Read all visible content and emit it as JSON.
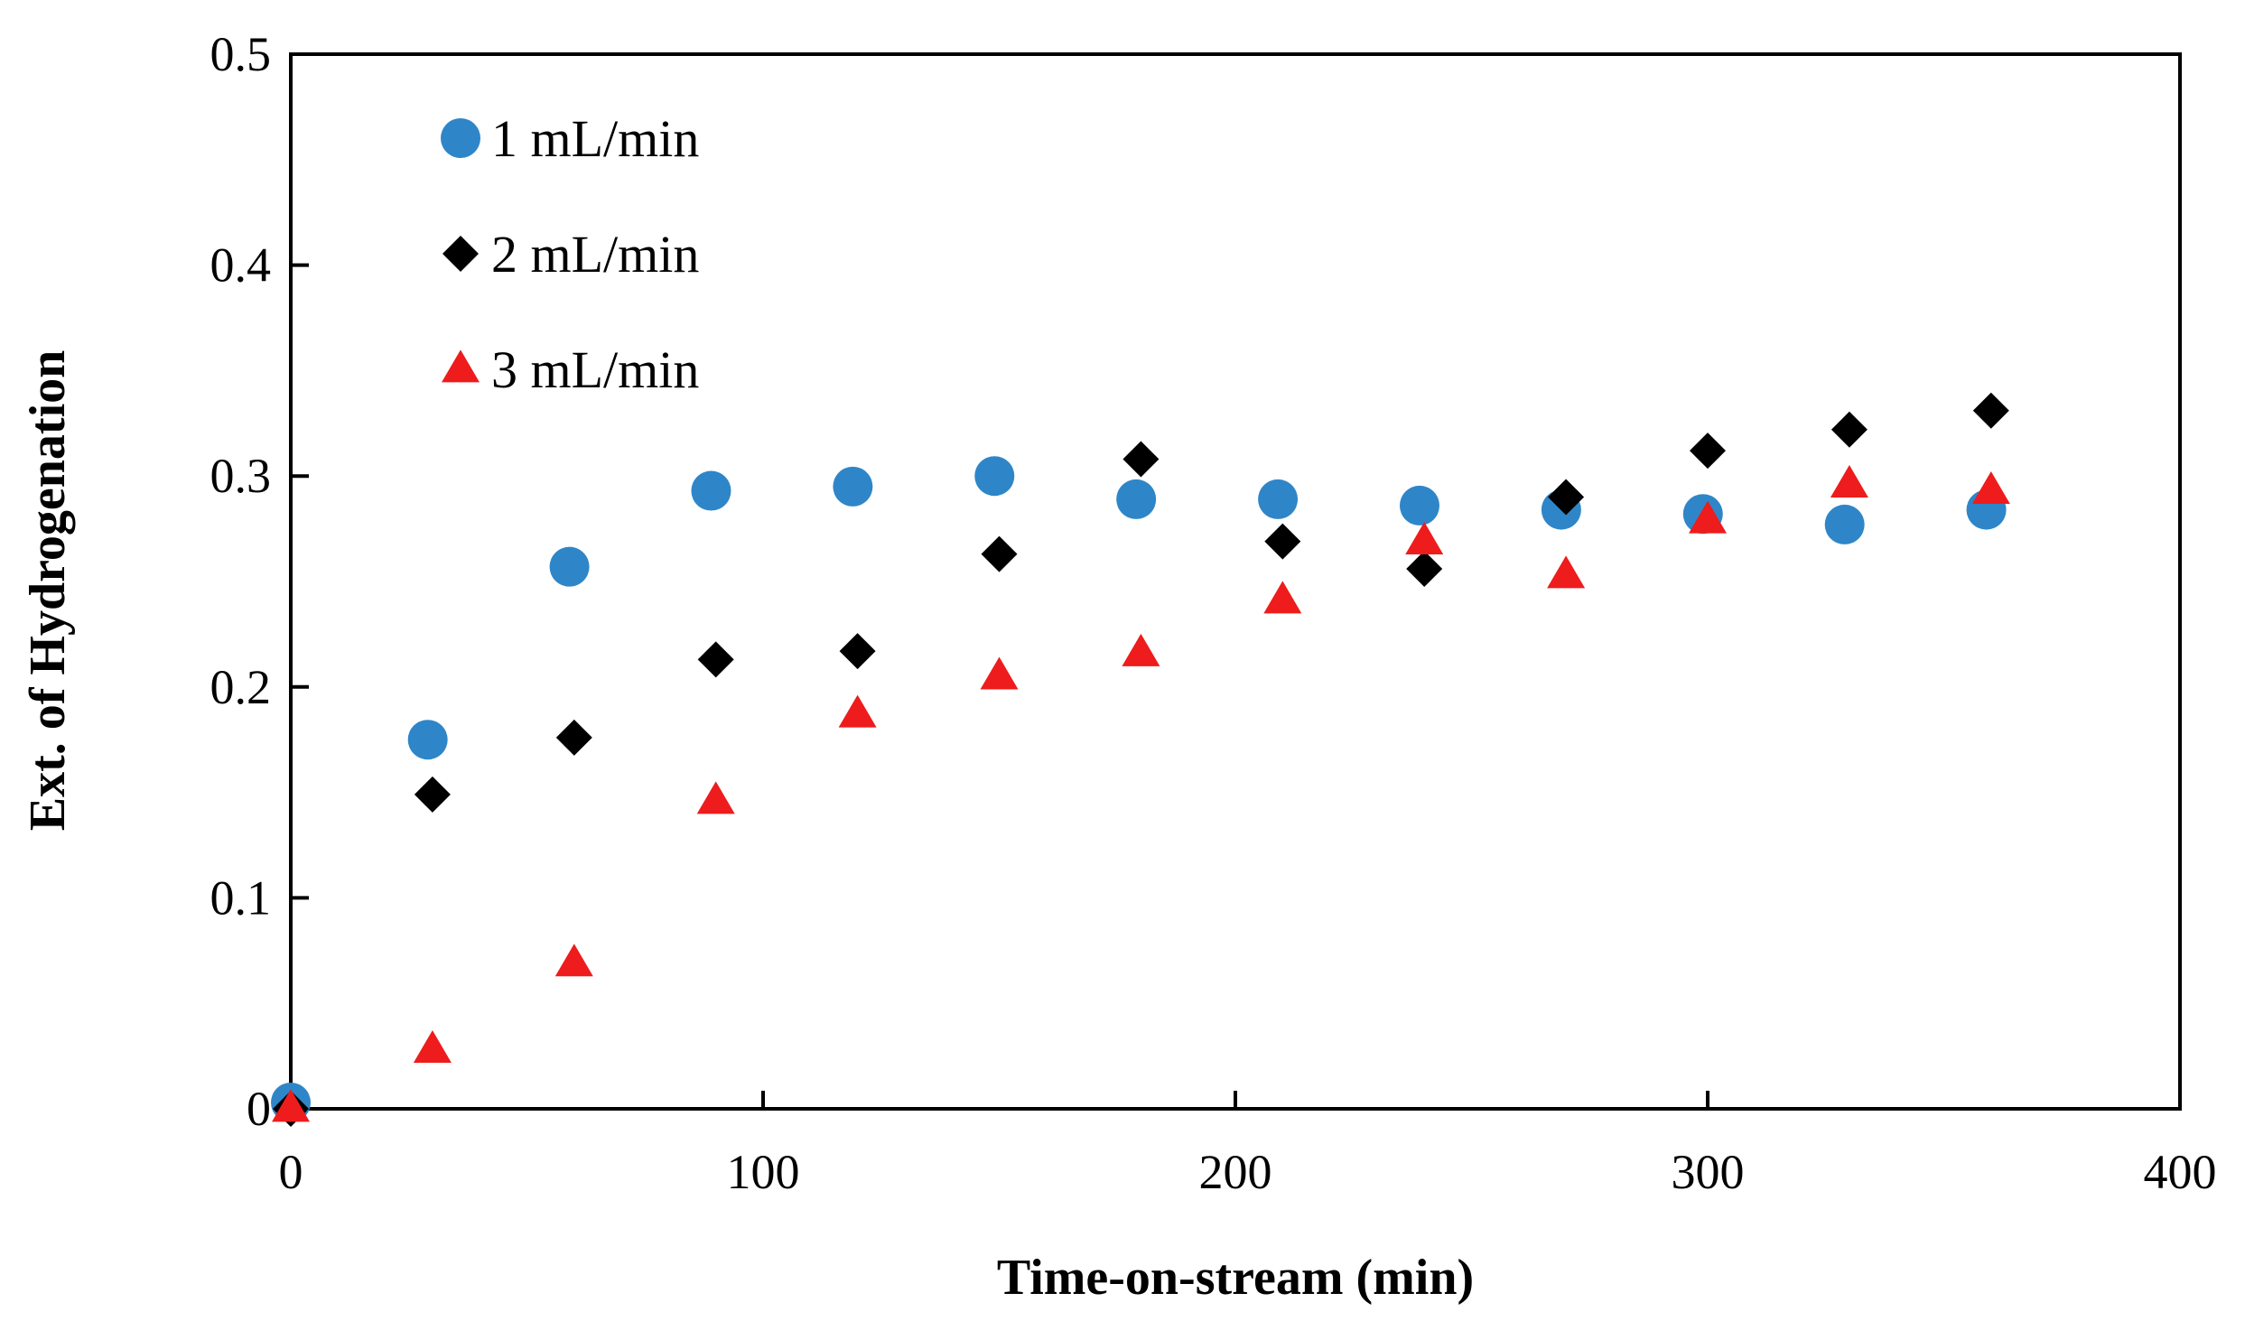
{
  "chart_data": {
    "type": "scatter",
    "title": "",
    "xlabel": "Time-on-stream  (min)",
    "ylabel": "Ext.  of Hydrogenation",
    "xlim": [
      0,
      400
    ],
    "ylim": [
      0,
      0.5
    ],
    "xticks": [
      0,
      100,
      200,
      300,
      400
    ],
    "yticks": [
      0,
      0.1,
      0.2,
      0.3,
      0.4,
      0.5
    ],
    "xtick_labels": [
      "0",
      "100",
      "200",
      "300",
      "400"
    ],
    "ytick_labels": [
      "0",
      "0.1",
      "0.2",
      "0.3",
      "0.4",
      "0.5"
    ],
    "grid": false,
    "legend_position": "top-left",
    "series": [
      {
        "name": "1 mL/min",
        "marker": "circle",
        "color": "#2E86C8",
        "x": [
          0,
          29,
          59,
          89,
          119,
          149,
          179,
          209,
          239,
          269,
          299,
          329,
          359
        ],
        "y": [
          0.003,
          0.175,
          0.257,
          0.293,
          0.295,
          0.3,
          0.289,
          0.289,
          0.286,
          0.284,
          0.282,
          0.277,
          0.284
        ]
      },
      {
        "name": "2 mL/min",
        "marker": "diamond",
        "color": "#000000",
        "x": [
          0,
          30,
          60,
          90,
          120,
          150,
          180,
          210,
          240,
          270,
          300,
          330,
          360
        ],
        "y": [
          0.0,
          0.149,
          0.176,
          0.213,
          0.217,
          0.263,
          0.308,
          0.269,
          0.256,
          0.29,
          0.312,
          0.322,
          0.331
        ]
      },
      {
        "name": "3 mL/min",
        "marker": "triangle",
        "color": "#EE1C1C",
        "x": [
          0,
          30,
          60,
          90,
          120,
          150,
          180,
          210,
          240,
          270,
          300,
          330,
          360
        ],
        "y": [
          0.0,
          0.028,
          0.069,
          0.146,
          0.187,
          0.205,
          0.216,
          0.241,
          0.269,
          0.253,
          0.279,
          0.296,
          0.293
        ]
      }
    ]
  }
}
